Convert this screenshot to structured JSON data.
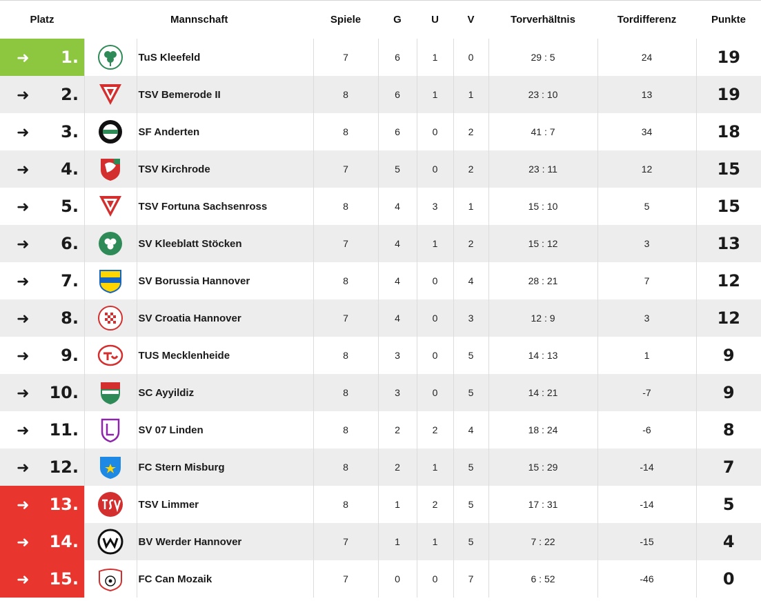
{
  "headers": {
    "place": "Platz",
    "team": "Mannschaft",
    "games": "Spiele",
    "won": "G",
    "draw": "U",
    "lost": "V",
    "goals": "Torverhältnis",
    "diff": "Tordifferenz",
    "points": "Punkte"
  },
  "colors": {
    "promotion": "#8dc63f",
    "relegation": "#e8352e",
    "row_alt": "#ededed"
  },
  "rows": [
    {
      "arrow": "➜",
      "place": "1.",
      "team": "TuS Kleefeld",
      "games": "7",
      "won": "6",
      "draw": "1",
      "lost": "0",
      "goals": "29 : 5",
      "diff": "24",
      "points": "19",
      "zone": "promo",
      "crest": "clover-crest-icon"
    },
    {
      "arrow": "➜",
      "place": "2.",
      "team": "TSV Bemerode II",
      "games": "8",
      "won": "6",
      "draw": "1",
      "lost": "1",
      "goals": "23 : 10",
      "diff": "13",
      "points": "19",
      "zone": "",
      "crest": "red-triangle-crest-icon"
    },
    {
      "arrow": "➜",
      "place": "3.",
      "team": "SF Anderten",
      "games": "8",
      "won": "6",
      "draw": "0",
      "lost": "2",
      "goals": "41 : 7",
      "diff": "34",
      "points": "18",
      "zone": "",
      "crest": "black-round-crest-icon"
    },
    {
      "arrow": "➜",
      "place": "4.",
      "team": "TSV Kirchrode",
      "games": "7",
      "won": "5",
      "draw": "0",
      "lost": "2",
      "goals": "23 : 11",
      "diff": "12",
      "points": "15",
      "zone": "",
      "crest": "red-shield-crest-icon"
    },
    {
      "arrow": "➜",
      "place": "5.",
      "team": "TSV Fortuna Sachsenross",
      "games": "8",
      "won": "4",
      "draw": "3",
      "lost": "1",
      "goals": "15 : 10",
      "diff": "5",
      "points": "15",
      "zone": "",
      "crest": "red-triangle-crest-icon"
    },
    {
      "arrow": "➜",
      "place": "6.",
      "team": "SV Kleeblatt Stöcken",
      "games": "7",
      "won": "4",
      "draw": "1",
      "lost": "2",
      "goals": "15 : 12",
      "diff": "3",
      "points": "13",
      "zone": "",
      "crest": "green-clover-crest-icon"
    },
    {
      "arrow": "➜",
      "place": "7.",
      "team": "SV Borussia Hannover",
      "games": "8",
      "won": "4",
      "draw": "0",
      "lost": "4",
      "goals": "28 : 21",
      "diff": "7",
      "points": "12",
      "zone": "",
      "crest": "yellow-blue-shield-crest-icon"
    },
    {
      "arrow": "➜",
      "place": "8.",
      "team": "SV Croatia Hannover",
      "games": "7",
      "won": "4",
      "draw": "0",
      "lost": "3",
      "goals": "12 : 9",
      "diff": "3",
      "points": "12",
      "zone": "",
      "crest": "checkered-crest-icon"
    },
    {
      "arrow": "➜",
      "place": "9.",
      "team": "TUS Mecklenheide",
      "games": "8",
      "won": "3",
      "draw": "0",
      "lost": "5",
      "goals": "14 : 13",
      "diff": "1",
      "points": "9",
      "zone": "",
      "crest": "red-script-crest-icon"
    },
    {
      "arrow": "➜",
      "place": "10.",
      "team": "SC Ayyildiz",
      "games": "8",
      "won": "3",
      "draw": "0",
      "lost": "5",
      "goals": "14 : 21",
      "diff": "-7",
      "points": "9",
      "zone": "",
      "crest": "red-green-shield-crest-icon"
    },
    {
      "arrow": "➜",
      "place": "11.",
      "team": "SV 07 Linden",
      "games": "8",
      "won": "2",
      "draw": "2",
      "lost": "4",
      "goals": "18 : 24",
      "diff": "-6",
      "points": "8",
      "zone": "",
      "crest": "purple-shield-crest-icon"
    },
    {
      "arrow": "➜",
      "place": "12.",
      "team": "FC Stern Misburg",
      "games": "8",
      "won": "2",
      "draw": "1",
      "lost": "5",
      "goals": "15 : 29",
      "diff": "-14",
      "points": "7",
      "zone": "",
      "crest": "blue-star-shield-crest-icon"
    },
    {
      "arrow": "➜",
      "place": "13.",
      "team": "TSV Limmer",
      "games": "8",
      "won": "1",
      "draw": "2",
      "lost": "5",
      "goals": "17 : 31",
      "diff": "-14",
      "points": "5",
      "zone": "releg",
      "crest": "red-tsv-crest-icon"
    },
    {
      "arrow": "➜",
      "place": "14.",
      "team": "BV Werder Hannover",
      "games": "7",
      "won": "1",
      "draw": "1",
      "lost": "5",
      "goals": "7 : 22",
      "diff": "-15",
      "points": "4",
      "zone": "releg",
      "crest": "black-w-crest-icon"
    },
    {
      "arrow": "➜",
      "place": "15.",
      "team": "FC Can Mozaik",
      "games": "7",
      "won": "0",
      "draw": "0",
      "lost": "7",
      "goals": "6 : 52",
      "diff": "-46",
      "points": "0",
      "zone": "releg",
      "crest": "mosaic-crest-icon"
    }
  ]
}
